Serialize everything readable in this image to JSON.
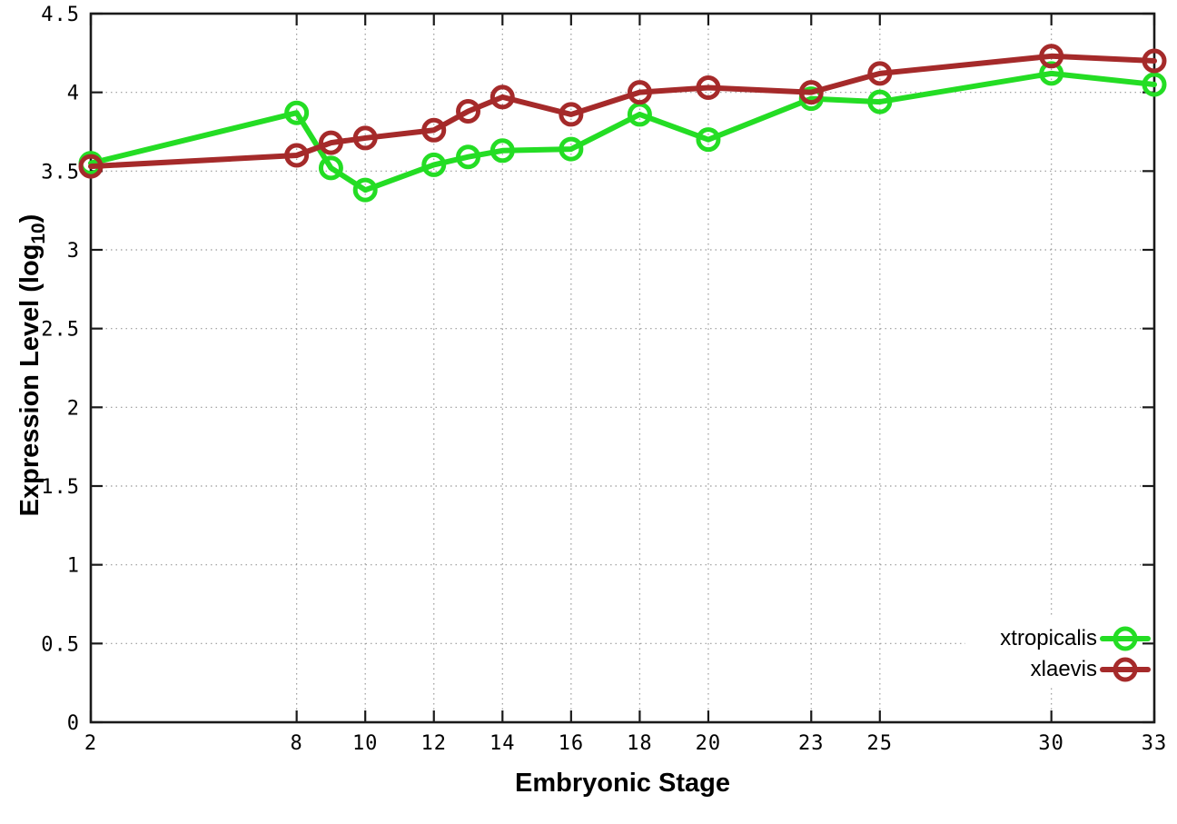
{
  "chart_data": {
    "type": "line",
    "title": "",
    "xlabel": "Embryonic Stage",
    "ylabel": "Expression Level (log10)",
    "x": [
      2,
      8,
      9,
      10,
      12,
      13,
      14,
      16,
      18,
      20,
      23,
      25,
      30,
      33
    ],
    "series": [
      {
        "name": "xtropicalis",
        "color": "#24dd24",
        "values": [
          3.55,
          3.87,
          3.52,
          3.38,
          3.54,
          3.59,
          3.63,
          3.64,
          3.86,
          3.7,
          3.96,
          3.94,
          4.12,
          4.05
        ]
      },
      {
        "name": "xlaevis",
        "color": "#a52a2a",
        "values": [
          3.53,
          3.6,
          3.68,
          3.71,
          3.76,
          3.88,
          3.97,
          3.86,
          4.0,
          4.03,
          4.0,
          4.12,
          4.23,
          4.2
        ]
      }
    ],
    "xlim": [
      2,
      33
    ],
    "ylim": [
      0,
      4.5
    ],
    "xticks": [
      2,
      8,
      10,
      12,
      14,
      16,
      18,
      20,
      23,
      25,
      30,
      33
    ],
    "xtick_labels": [
      "2",
      "8",
      "10",
      "12",
      "14",
      "16",
      "18",
      "20",
      "23",
      "25",
      "30",
      "33"
    ],
    "yticks": [
      0,
      0.5,
      1,
      1.5,
      2,
      2.5,
      3,
      3.5,
      4,
      4.5
    ],
    "ytick_labels": [
      "0",
      "0.5",
      "1",
      "1.5",
      "2",
      "2.5",
      "3",
      "3.5",
      "4",
      "4.5"
    ],
    "grid": true,
    "grid_color": "#999999",
    "border_color": "#1a1a1a",
    "marker": "open-circle",
    "legend_position": "bottom-right"
  },
  "labels": {
    "ylabel_prefix": "Expression Level (log",
    "ylabel_sub": "10",
    "ylabel_suffix": ")"
  },
  "legend": {
    "items": [
      {
        "label": "xtropicalis"
      },
      {
        "label": "xlaevis"
      }
    ]
  }
}
